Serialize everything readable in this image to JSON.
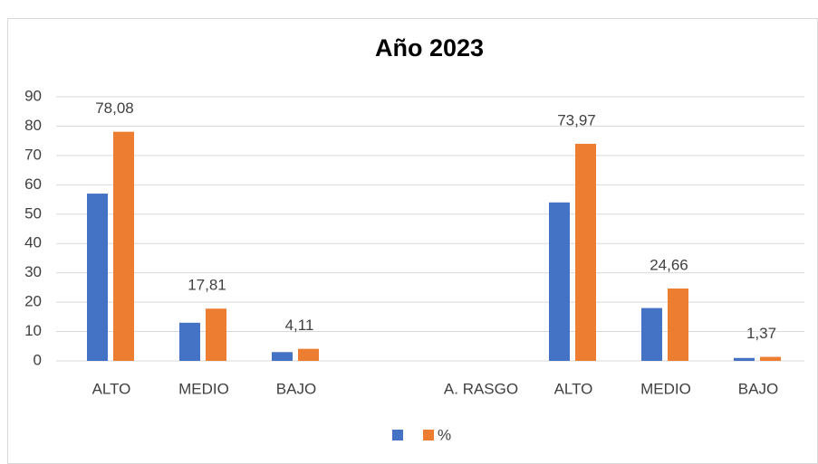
{
  "chart_data": {
    "type": "bar",
    "title": "Año 2023",
    "categories": [
      "ALTO",
      "MEDIO",
      "BAJO",
      null,
      "A. RASGO",
      "ALTO",
      "MEDIO",
      "BAJO"
    ],
    "series": [
      {
        "color": "#4472c4",
        "values": [
          57,
          13,
          3,
          null,
          null,
          54,
          18,
          1
        ]
      },
      {
        "name": "%",
        "color": "#ed7d31",
        "values": [
          78.08,
          17.81,
          4.11,
          null,
          null,
          73.97,
          24.66,
          1.37
        ],
        "value_labels": [
          "78,08",
          "17,81",
          "4,11",
          null,
          null,
          "73,97",
          "24,66",
          "1,37"
        ]
      }
    ],
    "ylim": [
      0,
      90
    ],
    "yticks": [
      0,
      10,
      20,
      30,
      40,
      50,
      60,
      70,
      80,
      90
    ],
    "grid": true,
    "legend": "bottom"
  }
}
